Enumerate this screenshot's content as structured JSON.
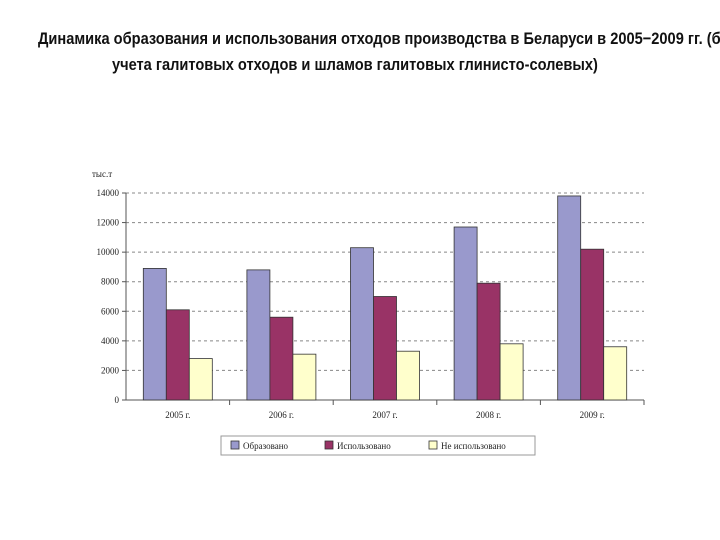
{
  "slide": {
    "title_line_1": "Динамика образования и использования отходов производства в Беларуси в 2005−2009 гг. (без",
    "title_line_2": "учета галитовых отходов и шламов галитовых глинисто-солевых)"
  },
  "chart_data": {
    "type": "bar",
    "ylabel": "тыс.т",
    "ylim": [
      0,
      14000
    ],
    "yticks": [
      0,
      2000,
      4000,
      6000,
      8000,
      10000,
      12000,
      14000
    ],
    "grid": true,
    "legend_position": "bottom",
    "categories": [
      "2005 г.",
      "2006 г.",
      "2007 г.",
      "2008 г.",
      "2009 г."
    ],
    "series": [
      {
        "name": "Образовано",
        "color": "#9999cc",
        "values": [
          8900,
          8800,
          10300,
          11700,
          13800
        ]
      },
      {
        "name": "Использовано",
        "color": "#993366",
        "values": [
          6100,
          5600,
          7000,
          7900,
          10200
        ]
      },
      {
        "name": "Не использовано",
        "color": "#ffffcc",
        "values": [
          2800,
          3100,
          3300,
          3800,
          3600
        ]
      }
    ]
  }
}
